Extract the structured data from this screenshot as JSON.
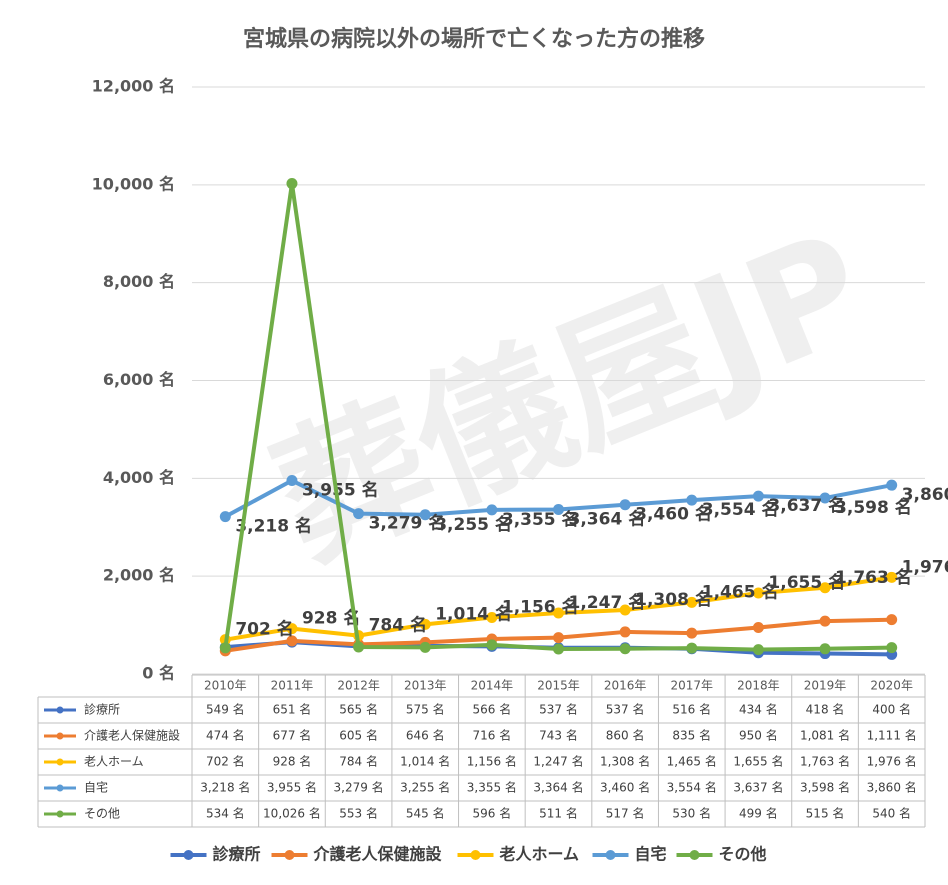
{
  "chart_data": {
    "type": "line",
    "title": "宮城県の病院以外の場所で亡くなった方の推移",
    "watermark": "葬儀屋JP",
    "categories": [
      "2010年",
      "2011年",
      "2012年",
      "2013年",
      "2014年",
      "2015年",
      "2016年",
      "2017年",
      "2018年",
      "2019年",
      "2020年"
    ],
    "ylim": [
      0,
      12000
    ],
    "yticks": [
      {
        "value": 0,
        "label": "0 名"
      },
      {
        "value": 2000,
        "label": "2,000 名"
      },
      {
        "value": 4000,
        "label": "4,000 名"
      },
      {
        "value": 6000,
        "label": "6,000 名"
      },
      {
        "value": 8000,
        "label": "8,000 名"
      },
      {
        "value": 10000,
        "label": "10,000 名"
      },
      {
        "value": 12000,
        "label": "12,000 名"
      }
    ],
    "grid": true,
    "legend": "bottom",
    "series": [
      {
        "name": "診療所",
        "color": "#4472c4",
        "show_labels": false,
        "values": [
          549,
          651,
          565,
          575,
          566,
          537,
          537,
          516,
          434,
          418,
          400
        ],
        "value_labels": [
          "549 名",
          "651 名",
          "565 名",
          "575 名",
          "566 名",
          "537 名",
          "537 名",
          "516 名",
          "434 名",
          "418 名",
          "400 名"
        ]
      },
      {
        "name": "介護老人保健施設",
        "color": "#ed7d31",
        "show_labels": false,
        "values": [
          474,
          677,
          605,
          646,
          716,
          743,
          860,
          835,
          950,
          1081,
          1111
        ],
        "value_labels": [
          "474 名",
          "677 名",
          "605 名",
          "646 名",
          "716 名",
          "743 名",
          "860 名",
          "835 名",
          "950 名",
          "1,081 名",
          "1,111 名"
        ]
      },
      {
        "name": "老人ホーム",
        "color": "#ffc000",
        "show_labels": true,
        "label_side": "above",
        "values": [
          702,
          928,
          784,
          1014,
          1156,
          1247,
          1308,
          1465,
          1655,
          1763,
          1976
        ],
        "value_labels": [
          "702 名",
          "928 名",
          "784 名",
          "1,014 名",
          "1,156 名",
          "1,247 名",
          "1,308 名",
          "1,465 名",
          "1,655 名",
          "1,763 名",
          "1,976 名"
        ]
      },
      {
        "name": "自宅",
        "color": "#5b9bd5",
        "show_labels": true,
        "label_side": "below",
        "values": [
          3218,
          3955,
          3279,
          3255,
          3355,
          3364,
          3460,
          3554,
          3637,
          3598,
          3860
        ],
        "value_labels": [
          "3,218 名",
          "3,955 名",
          "3,279 名",
          "3,255 名",
          "3,355 名",
          "3,364 名",
          "3,460 名",
          "3,554 名",
          "3,637 名",
          "3,598 名",
          "3,860 名"
        ]
      },
      {
        "name": "その他",
        "color": "#70ad47",
        "show_labels": false,
        "values": [
          534,
          10026,
          553,
          545,
          596,
          511,
          517,
          530,
          499,
          515,
          540
        ],
        "value_labels": [
          "534 名",
          "10,026 名",
          "553 名",
          "545 名",
          "596 名",
          "511 名",
          "517 名",
          "530 名",
          "499 名",
          "515 名",
          "540 名"
        ]
      }
    ]
  }
}
